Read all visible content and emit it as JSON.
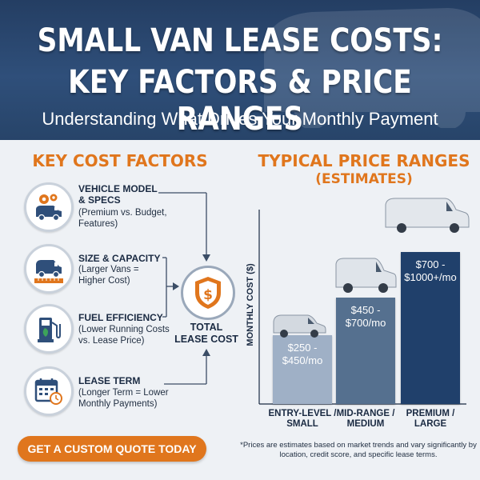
{
  "header": {
    "title_line1": "SMALL VAN LEASE COSTS:",
    "title_line2": "KEY FACTORS & PRICE RANGES",
    "subtitle": "Understanding What Drives Your Monthly Payment"
  },
  "factors": {
    "title": "KEY COST FACTORS",
    "items": [
      {
        "head1": "VEHICLE MODEL",
        "head2": "& SPECS",
        "desc1": "(Premium vs. Budget,",
        "desc2": "Features)",
        "icon": "van-gears-icon"
      },
      {
        "head1": "SIZE & CAPACITY",
        "head2": "",
        "desc1": "(Larger Vans =",
        "desc2": "Higher Cost)",
        "icon": "van-ruler-icon"
      },
      {
        "head1": "FUEL EFFICIENCY",
        "head2": "",
        "desc1": "(Lower Running Costs",
        "desc2": "vs. Lease Price)",
        "icon": "fuel-pump-icon"
      },
      {
        "head1": "LEASE TERM",
        "head2": "",
        "desc1": "(Longer Term = Lower",
        "desc2": "Monthly Payments)",
        "icon": "calendar-clock-icon"
      }
    ],
    "total_line1": "TOTAL",
    "total_line2": "LEASE COST"
  },
  "cta_label": "GET A CUSTOM QUOTE TODAY",
  "price": {
    "title_line1": "TYPICAL PRICE RANGES",
    "title_line2": "(ESTIMATES)",
    "note": "*Prices are estimates based on market trends and vary significantly by location, credit score, and specific lease terms."
  },
  "chart_data": {
    "type": "bar",
    "ylabel": "MONTHLY COST ($)",
    "categories": [
      {
        "line1": "ENTRY-LEVEL /",
        "line2": "SMALL"
      },
      {
        "line1": "MID-RANGE /",
        "line2": "MEDIUM"
      },
      {
        "line1": "PREMIUM /",
        "line2": "LARGE"
      }
    ],
    "bars": [
      {
        "label1": "$250 -",
        "label2": "$450/mo",
        "low": 250,
        "high": 450,
        "color": "#9fb0c6"
      },
      {
        "label1": "$450 -",
        "label2": "$700/mo",
        "low": 450,
        "high": 700,
        "color": "#55708f"
      },
      {
        "label1": "$700 -",
        "label2": "$1000+/mo",
        "low": 700,
        "high": 1000,
        "color": "#20406b"
      }
    ],
    "colors": {
      "accent": "#e0761d",
      "navy": "#243e63"
    }
  }
}
